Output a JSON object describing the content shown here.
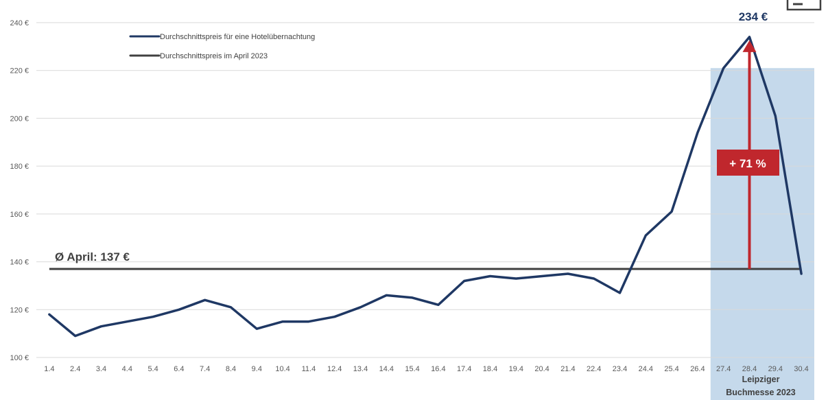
{
  "chart_data": {
    "type": "line",
    "categories": [
      "1.4",
      "2.4",
      "3.4",
      "4.4",
      "5.4",
      "6.4",
      "7.4",
      "8.4",
      "9.4",
      "10.4",
      "11.4",
      "12.4",
      "13.4",
      "14.4",
      "15.4",
      "16.4",
      "17.4",
      "18.4",
      "19.4",
      "20.4",
      "21.4",
      "22.4",
      "23.4",
      "24.4",
      "25.4",
      "26.4",
      "27.4",
      "28.4",
      "29.4",
      "30.4"
    ],
    "series": [
      {
        "name": "Durchschnittspreis für eine Hotelübernachtung",
        "color": "#1f3864",
        "values": [
          118,
          109,
          113,
          115,
          117,
          120,
          124,
          121,
          112,
          115,
          115,
          117,
          121,
          126,
          125,
          122,
          132,
          134,
          133,
          134,
          135,
          133,
          127,
          151,
          161,
          194,
          221,
          234,
          201,
          135
        ]
      },
      {
        "name": "Durchschnittspreis im April 2023",
        "color": "#404040",
        "values": [
          137,
          137,
          137,
          137,
          137,
          137,
          137,
          137,
          137,
          137,
          137,
          137,
          137,
          137,
          137,
          137,
          137,
          137,
          137,
          137,
          137,
          137,
          137,
          137,
          137,
          137,
          137,
          137,
          137,
          137
        ]
      }
    ],
    "yticks": [
      "100 €",
      "120 €",
      "140 €",
      "160 €",
      "180 €",
      "200 €",
      "220 €",
      "240 €"
    ],
    "ylim": [
      100,
      240
    ],
    "grid": true,
    "legend_position": "top-left",
    "annotations": {
      "average_label": "Ø April: 137 €",
      "peak_label": "234 €",
      "change_label": "+ 71 %",
      "event_line1": "Leipziger",
      "event_line2": "Buchmesse 2023",
      "event_range": [
        "27.4",
        "30.4"
      ]
    },
    "colors": {
      "highlight": "#c5d9eb",
      "arrow": "#c0272d",
      "grid": "#d9d9d9"
    }
  }
}
